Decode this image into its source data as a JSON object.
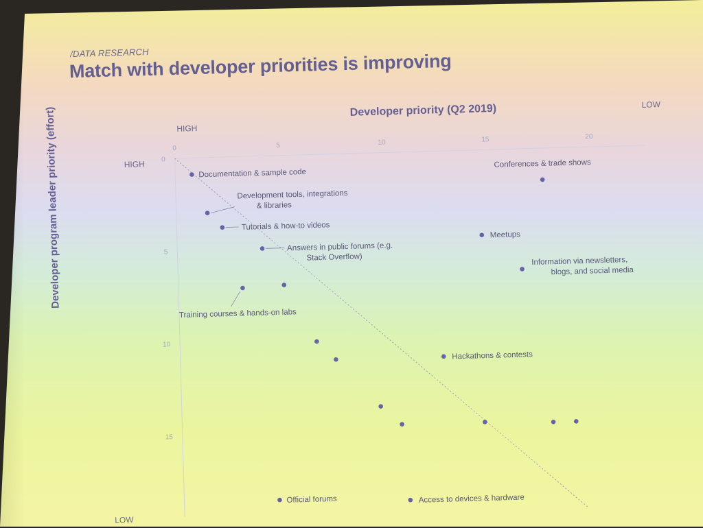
{
  "slide": {
    "section": "/DATA RESEARCH",
    "title": "Match with developer priorities is improving"
  },
  "colors": {
    "accent": "#645f93",
    "dot": "#6563a6",
    "text": "#585876"
  },
  "chart_data": {
    "type": "scatter",
    "title": "",
    "xlabel": "Developer priority (Q2 2019)",
    "ylabel": "Developer program leader priority (effort)",
    "x_axis_position": "top",
    "x_end_labels": {
      "start": "HIGH",
      "end": "LOW"
    },
    "y_end_labels": {
      "start": "HIGH",
      "end": "LOW"
    },
    "xlim": [
      0,
      22
    ],
    "ylim": [
      0,
      19
    ],
    "x_ticks": [
      0,
      5,
      10,
      15,
      20
    ],
    "y_ticks": [
      0,
      5,
      10,
      15
    ],
    "diagonal_reference": true,
    "grid": false,
    "points": [
      {
        "x": 0.8,
        "y": 0.9,
        "label": "Documentation & sample code"
      },
      {
        "x": 1.5,
        "y": 3.0,
        "label": "Development tools, integrations\n& libraries"
      },
      {
        "x": 2.2,
        "y": 3.8,
        "label": "Tutorials & how-to videos"
      },
      {
        "x": 4.1,
        "y": 5.0,
        "label": "Answers in public forums (e.g.\nStack Overflow)"
      },
      {
        "x": 3.1,
        "y": 7.1,
        "label": ""
      },
      {
        "x": 5.1,
        "y": 7.0,
        "label": ""
      },
      {
        "x": 6.6,
        "y": 10.1,
        "label": ""
      },
      {
        "x": 7.5,
        "y": 11.1,
        "label": ""
      },
      {
        "x": 9.6,
        "y": 13.7,
        "label": ""
      },
      {
        "x": 10.6,
        "y": 14.7,
        "label": ""
      },
      {
        "x": 12.7,
        "y": 11.1,
        "label": "Hackathons & contests"
      },
      {
        "x": 14.7,
        "y": 4.6,
        "label": "Meetups"
      },
      {
        "x": 16.6,
        "y": 6.5,
        "label": "Information via newsletters,\nblogs, and social media"
      },
      {
        "x": 17.7,
        "y": 1.7,
        "label": "Conferences & trade shows"
      },
      {
        "x": 14.6,
        "y": 14.7,
        "label": ""
      },
      {
        "x": 17.9,
        "y": 14.8,
        "label": ""
      },
      {
        "x": 19.0,
        "y": 14.8,
        "label": ""
      },
      {
        "x": 4.6,
        "y": 18.6,
        "label": "Official forums"
      },
      {
        "x": 10.9,
        "y": 18.8,
        "label": "Access to devices & hardware"
      }
    ],
    "annotations": [
      {
        "text": "Training courses & hands-on labs",
        "x": 0.0,
        "y": 8.6,
        "points_to": [
          4
        ]
      }
    ]
  }
}
